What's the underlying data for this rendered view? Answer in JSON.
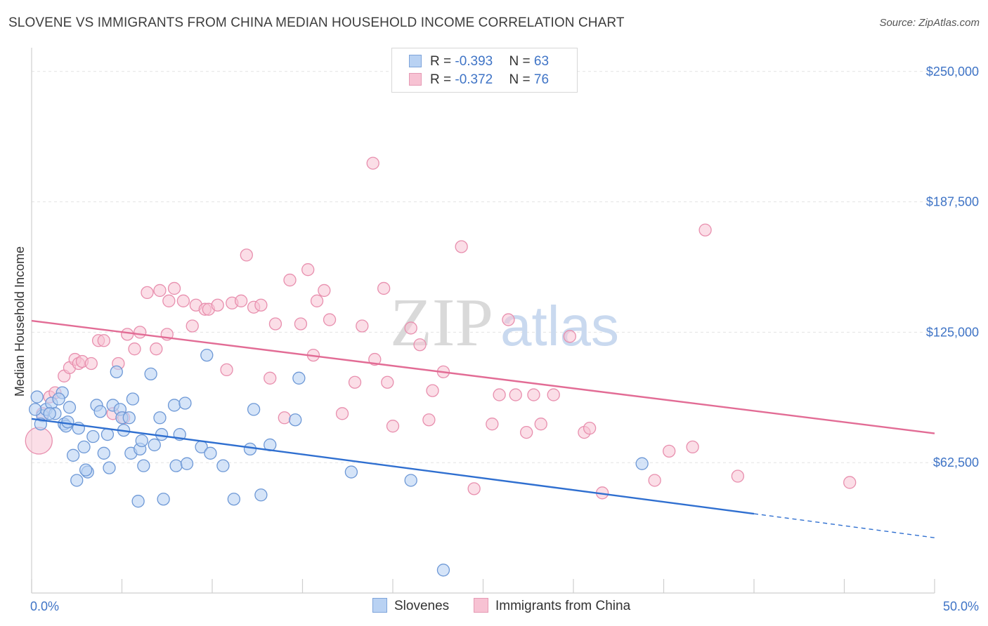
{
  "title": "SLOVENE VS IMMIGRANTS FROM CHINA MEDIAN HOUSEHOLD INCOME CORRELATION CHART",
  "source": "Source: ZipAtlas.com",
  "watermark": {
    "zip": "ZIP",
    "atlas": "atlas"
  },
  "colors": {
    "blue": "#3f74c6",
    "blue_fill": "#b9d2f3",
    "blue_line": "#2f6fd0",
    "pink": "#e26c95",
    "pink_fill": "#f7c2d3"
  },
  "legend": {
    "rows": [
      {
        "r_label": "R = ",
        "r_value": "-0.393",
        "n_label": "N = ",
        "n_value": "63"
      },
      {
        "r_label": "R = ",
        "r_value": "-0.372",
        "n_label": "N = ",
        "n_value": "76"
      }
    ]
  },
  "chart_data": {
    "type": "scatter",
    "xlabel": "",
    "ylabel": "Median Household Income",
    "xlim": [
      0,
      50
    ],
    "ylim": [
      0,
      258000
    ],
    "x_tick_labels": {
      "left": "0.0%",
      "right": "50.0%"
    },
    "y_ticks": [
      {
        "value": 250000,
        "label": "$250,000"
      },
      {
        "value": 187500,
        "label": "$187,500"
      },
      {
        "value": 125000,
        "label": "$125,000"
      },
      {
        "value": 62500,
        "label": "$62,500"
      }
    ],
    "series": [
      {
        "name": "Slovenes",
        "r": -0.393,
        "n": 63,
        "trend": {
          "x0": 0,
          "y0": 83500,
          "x1": 40,
          "y1": 38000,
          "dash_x1": 50,
          "dash_y1": 26500
        },
        "points": [
          [
            0.3,
            94000
          ],
          [
            0.6,
            85000
          ],
          [
            0.8,
            88000
          ],
          [
            1.1,
            91000
          ],
          [
            1.3,
            86000
          ],
          [
            1.7,
            96000
          ],
          [
            0.5,
            81000
          ],
          [
            1.8,
            81000
          ],
          [
            2.1,
            89000
          ],
          [
            2.6,
            79000
          ],
          [
            1.9,
            80000
          ],
          [
            2.3,
            66000
          ],
          [
            2.9,
            70000
          ],
          [
            3.1,
            58000
          ],
          [
            2.5,
            54000
          ],
          [
            3.4,
            75000
          ],
          [
            3.6,
            90000
          ],
          [
            3.8,
            87000
          ],
          [
            4.0,
            67000
          ],
          [
            4.2,
            76000
          ],
          [
            4.3,
            60000
          ],
          [
            4.5,
            90000
          ],
          [
            4.7,
            106000
          ],
          [
            4.9,
            88000
          ],
          [
            5.0,
            84000
          ],
          [
            5.1,
            78000
          ],
          [
            5.4,
            84000
          ],
          [
            5.5,
            67000
          ],
          [
            5.6,
            93000
          ],
          [
            5.9,
            44000
          ],
          [
            6.0,
            69000
          ],
          [
            6.1,
            73000
          ],
          [
            6.2,
            61000
          ],
          [
            6.6,
            105000
          ],
          [
            6.8,
            71000
          ],
          [
            7.1,
            84000
          ],
          [
            7.2,
            76000
          ],
          [
            7.3,
            45000
          ],
          [
            7.9,
            90000
          ],
          [
            8.0,
            61000
          ],
          [
            8.2,
            76000
          ],
          [
            8.5,
            91000
          ],
          [
            8.6,
            62000
          ],
          [
            9.4,
            70000
          ],
          [
            9.7,
            114000
          ],
          [
            9.9,
            67000
          ],
          [
            10.6,
            61000
          ],
          [
            11.2,
            45000
          ],
          [
            12.1,
            69000
          ],
          [
            12.3,
            88000
          ],
          [
            12.7,
            47000
          ],
          [
            13.2,
            71000
          ],
          [
            14.6,
            83000
          ],
          [
            14.8,
            103000
          ],
          [
            17.7,
            58000
          ],
          [
            21.0,
            54000
          ],
          [
            22.8,
            11000
          ],
          [
            33.8,
            62000
          ],
          [
            3.0,
            59000
          ],
          [
            1.0,
            86000
          ],
          [
            2.0,
            82000
          ],
          [
            0.2,
            88000
          ],
          [
            1.5,
            93000
          ]
        ]
      },
      {
        "name": "Immigrants from China",
        "r": -0.372,
        "n": 76,
        "trend": {
          "x0": 0,
          "y0": 130500,
          "x1": 50,
          "y1": 76500
        },
        "points": [
          [
            0.4,
            73000
          ],
          [
            0.6,
            86000
          ],
          [
            1.0,
            94000
          ],
          [
            1.3,
            96000
          ],
          [
            1.8,
            104000
          ],
          [
            2.1,
            108000
          ],
          [
            2.4,
            112000
          ],
          [
            2.6,
            110000
          ],
          [
            2.8,
            111000
          ],
          [
            3.3,
            110000
          ],
          [
            3.7,
            121000
          ],
          [
            4.0,
            121000
          ],
          [
            4.5,
            86000
          ],
          [
            4.8,
            110000
          ],
          [
            5.1,
            84000
          ],
          [
            5.3,
            124000
          ],
          [
            5.7,
            117000
          ],
          [
            6.0,
            125000
          ],
          [
            6.4,
            144000
          ],
          [
            6.9,
            117000
          ],
          [
            7.1,
            145000
          ],
          [
            7.5,
            124000
          ],
          [
            7.6,
            140000
          ],
          [
            7.9,
            146000
          ],
          [
            8.4,
            140000
          ],
          [
            8.9,
            128000
          ],
          [
            9.1,
            138000
          ],
          [
            9.6,
            136000
          ],
          [
            9.8,
            136000
          ],
          [
            10.3,
            138000
          ],
          [
            10.8,
            107000
          ],
          [
            11.1,
            139000
          ],
          [
            11.6,
            140000
          ],
          [
            11.9,
            162000
          ],
          [
            12.3,
            137000
          ],
          [
            12.7,
            138000
          ],
          [
            13.2,
            103000
          ],
          [
            13.5,
            129000
          ],
          [
            14.0,
            84000
          ],
          [
            14.3,
            150000
          ],
          [
            14.9,
            129000
          ],
          [
            15.3,
            155000
          ],
          [
            15.6,
            114000
          ],
          [
            15.8,
            140000
          ],
          [
            16.2,
            145000
          ],
          [
            16.5,
            131000
          ],
          [
            17.2,
            86000
          ],
          [
            17.9,
            101000
          ],
          [
            18.3,
            128000
          ],
          [
            18.9,
            206000
          ],
          [
            19.0,
            112000
          ],
          [
            19.5,
            146000
          ],
          [
            19.7,
            101000
          ],
          [
            20.0,
            80000
          ],
          [
            21.0,
            127000
          ],
          [
            21.5,
            119000
          ],
          [
            22.0,
            83000
          ],
          [
            22.2,
            97000
          ],
          [
            22.8,
            106000
          ],
          [
            23.8,
            166000
          ],
          [
            24.5,
            50000
          ],
          [
            25.5,
            81000
          ],
          [
            25.9,
            95000
          ],
          [
            26.4,
            131000
          ],
          [
            26.8,
            95000
          ],
          [
            27.4,
            77000
          ],
          [
            27.8,
            95000
          ],
          [
            28.2,
            81000
          ],
          [
            28.9,
            95000
          ],
          [
            29.8,
            123000
          ],
          [
            30.6,
            77000
          ],
          [
            30.9,
            79000
          ],
          [
            31.6,
            48000
          ],
          [
            34.5,
            54000
          ],
          [
            35.3,
            68000
          ],
          [
            37.3,
            174000
          ]
        ],
        "extra_points": [
          [
            36.6,
            70000
          ],
          [
            39.1,
            56000
          ],
          [
            45.3,
            53000
          ]
        ]
      }
    ],
    "legend_labels": [
      "Slovenes",
      "Immigrants from China"
    ]
  }
}
